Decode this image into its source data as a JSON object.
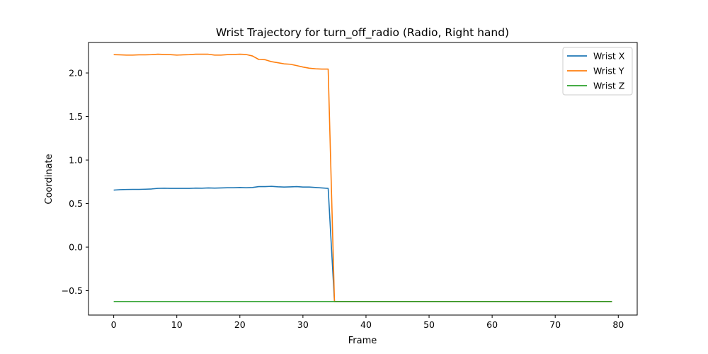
{
  "chart_data": {
    "type": "line",
    "title": "Wrist Trajectory for turn_off_radio (Radio, Right hand)",
    "xlabel": "Frame",
    "ylabel": "Coordinate",
    "xlim": [
      -4,
      83
    ],
    "ylim": [
      -0.78,
      2.35
    ],
    "xticks": [
      0,
      10,
      20,
      30,
      40,
      50,
      60,
      70,
      80
    ],
    "yticks": [
      -0.5,
      0.0,
      0.5,
      1.0,
      1.5,
      2.0
    ],
    "ytick_labels": [
      "−0.5",
      "0.0",
      "0.5",
      "1.0",
      "1.5",
      "2.0"
    ],
    "grid": false,
    "legend_position": "top-right",
    "x": [
      0,
      1,
      2,
      3,
      4,
      5,
      6,
      7,
      8,
      9,
      10,
      11,
      12,
      13,
      14,
      15,
      16,
      17,
      18,
      19,
      20,
      21,
      22,
      23,
      24,
      25,
      26,
      27,
      28,
      29,
      30,
      31,
      32,
      33,
      34,
      35,
      36,
      37,
      38,
      39,
      40,
      41,
      42,
      43,
      44,
      45,
      46,
      47,
      48,
      49,
      50,
      51,
      52,
      53,
      54,
      55,
      56,
      57,
      58,
      59,
      60,
      61,
      62,
      63,
      64,
      65,
      66,
      67,
      68,
      69,
      70,
      71,
      72,
      73,
      74,
      75,
      76,
      77,
      78,
      79
    ],
    "series": [
      {
        "name": "Wrist X",
        "color": "#1f77b4",
        "values": [
          0.655,
          0.66,
          0.662,
          0.663,
          0.663,
          0.665,
          0.668,
          0.675,
          0.677,
          0.675,
          0.675,
          0.675,
          0.675,
          0.678,
          0.677,
          0.68,
          0.678,
          0.68,
          0.682,
          0.682,
          0.685,
          0.682,
          0.685,
          0.695,
          0.695,
          0.698,
          0.693,
          0.69,
          0.692,
          0.695,
          0.69,
          0.69,
          0.685,
          0.68,
          0.675,
          -0.625,
          -0.625,
          -0.625,
          -0.625,
          -0.625,
          -0.625,
          -0.625,
          -0.625,
          -0.625,
          -0.625,
          -0.625,
          -0.625,
          -0.625,
          -0.625,
          -0.625,
          -0.625,
          -0.625,
          -0.625,
          -0.625,
          -0.625,
          -0.625,
          -0.625,
          -0.625,
          -0.625,
          -0.625,
          -0.625,
          -0.625,
          -0.625,
          -0.625,
          -0.625,
          -0.625,
          -0.625,
          -0.625,
          -0.625,
          -0.625,
          -0.625,
          -0.625,
          -0.625,
          -0.625,
          -0.625,
          -0.625,
          -0.625,
          -0.625,
          -0.625,
          -0.625
        ]
      },
      {
        "name": "Wrist Y",
        "color": "#ff7f0e",
        "values": [
          2.21,
          2.208,
          2.205,
          2.205,
          2.208,
          2.208,
          2.21,
          2.215,
          2.212,
          2.21,
          2.205,
          2.208,
          2.21,
          2.215,
          2.215,
          2.215,
          2.205,
          2.205,
          2.21,
          2.212,
          2.215,
          2.212,
          2.195,
          2.155,
          2.152,
          2.13,
          2.118,
          2.105,
          2.1,
          2.085,
          2.068,
          2.055,
          2.048,
          2.045,
          2.045,
          -0.625,
          -0.625,
          -0.625,
          -0.625,
          -0.625,
          -0.625,
          -0.625,
          -0.625,
          -0.625,
          -0.625,
          -0.625,
          -0.625,
          -0.625,
          -0.625,
          -0.625,
          -0.625,
          -0.625,
          -0.625,
          -0.625,
          -0.625,
          -0.625,
          -0.625,
          -0.625,
          -0.625,
          -0.625,
          -0.625,
          -0.625,
          -0.625,
          -0.625,
          -0.625,
          -0.625,
          -0.625,
          -0.625,
          -0.625,
          -0.625,
          -0.625,
          -0.625,
          -0.625,
          -0.625,
          -0.625,
          -0.625,
          -0.625,
          -0.625,
          -0.625,
          -0.625
        ]
      },
      {
        "name": "Wrist Z",
        "color": "#2ca02c",
        "values": [
          -0.625,
          -0.625,
          -0.625,
          -0.625,
          -0.625,
          -0.625,
          -0.625,
          -0.625,
          -0.625,
          -0.625,
          -0.625,
          -0.625,
          -0.625,
          -0.625,
          -0.625,
          -0.625,
          -0.625,
          -0.625,
          -0.625,
          -0.625,
          -0.625,
          -0.625,
          -0.625,
          -0.625,
          -0.625,
          -0.625,
          -0.625,
          -0.625,
          -0.625,
          -0.625,
          -0.625,
          -0.625,
          -0.625,
          -0.625,
          -0.625,
          -0.625,
          -0.625,
          -0.625,
          -0.625,
          -0.625,
          -0.625,
          -0.625,
          -0.625,
          -0.625,
          -0.625,
          -0.625,
          -0.625,
          -0.625,
          -0.625,
          -0.625,
          -0.625,
          -0.625,
          -0.625,
          -0.625,
          -0.625,
          -0.625,
          -0.625,
          -0.625,
          -0.625,
          -0.625,
          -0.625,
          -0.625,
          -0.625,
          -0.625,
          -0.625,
          -0.625,
          -0.625,
          -0.625,
          -0.625,
          -0.625,
          -0.625,
          -0.625,
          -0.625,
          -0.625,
          -0.625,
          -0.625,
          -0.625,
          -0.625,
          -0.625,
          -0.625
        ]
      }
    ]
  }
}
